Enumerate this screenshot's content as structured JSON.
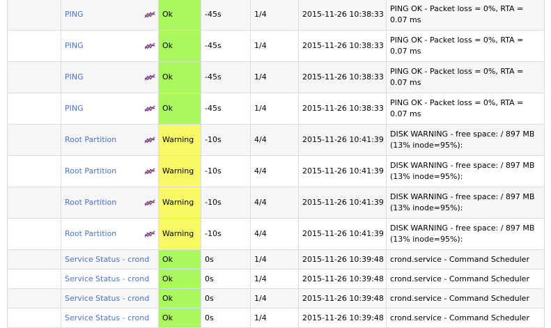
{
  "rows": [
    {
      "service": "PING",
      "graph_icon": "graph-icon",
      "status": "Ok",
      "last_check": "-45s",
      "attempt": "1/4",
      "checked_at": "2015-11-26 10:38:33",
      "info": "PING OK - Packet loss = 0%, RTA = 0.07 ms"
    },
    {
      "service": "PING",
      "graph_icon": "graph-icon",
      "status": "Ok",
      "last_check": "-45s",
      "attempt": "1/4",
      "checked_at": "2015-11-26 10:38:33",
      "info": "PING OK - Packet loss = 0%, RTA = 0.07 ms"
    },
    {
      "service": "PING",
      "graph_icon": "graph-icon",
      "status": "Ok",
      "last_check": "-45s",
      "attempt": "1/4",
      "checked_at": "2015-11-26 10:38:33",
      "info": "PING OK - Packet loss = 0%, RTA = 0.07 ms"
    },
    {
      "service": "PING",
      "graph_icon": "graph-icon",
      "status": "Ok",
      "last_check": "-45s",
      "attempt": "1/4",
      "checked_at": "2015-11-26 10:38:33",
      "info": "PING OK - Packet loss = 0%, RTA = 0.07 ms"
    },
    {
      "service": "Root Partition",
      "graph_icon": "graph-icon",
      "status": "Warning",
      "last_check": "-10s",
      "attempt": "4/4",
      "checked_at": "2015-11-26 10:41:39",
      "info": "DISK WARNING - free space: / 897 MB (13% inode=95%):"
    },
    {
      "service": "Root Partition",
      "graph_icon": "graph-icon",
      "status": "Warning",
      "last_check": "-10s",
      "attempt": "4/4",
      "checked_at": "2015-11-26 10:41:39",
      "info": "DISK WARNING - free space: / 897 MB (13% inode=95%):"
    },
    {
      "service": "Root Partition",
      "graph_icon": "graph-icon",
      "status": "Warning",
      "last_check": "-10s",
      "attempt": "4/4",
      "checked_at": "2015-11-26 10:41:39",
      "info": "DISK WARNING - free space: / 897 MB (13% inode=95%):"
    },
    {
      "service": "Root Partition",
      "graph_icon": "graph-icon",
      "status": "Warning",
      "last_check": "-10s",
      "attempt": "4/4",
      "checked_at": "2015-11-26 10:41:39",
      "info": "DISK WARNING - free space: / 897 MB (13% inode=95%):"
    },
    {
      "service": "Service Status - crond",
      "graph_icon": "",
      "status": "Ok",
      "last_check": "0s",
      "attempt": "1/4",
      "checked_at": "2015-11-26 10:39:48",
      "info": "crond.service - Command Scheduler"
    },
    {
      "service": "Service Status - crond",
      "graph_icon": "",
      "status": "Ok",
      "last_check": "0s",
      "attempt": "1/4",
      "checked_at": "2015-11-26 10:39:48",
      "info": "crond.service - Command Scheduler"
    },
    {
      "service": "Service Status - crond",
      "graph_icon": "",
      "status": "Ok",
      "last_check": "0s",
      "attempt": "1/4",
      "checked_at": "2015-11-26 10:39:48",
      "info": "crond.service - Command Scheduler"
    },
    {
      "service": "Service Status - crond",
      "graph_icon": "",
      "status": "Ok",
      "last_check": "0s",
      "attempt": "1/4",
      "checked_at": "2015-11-26 10:39:48",
      "info": "crond.service - Command Scheduler"
    }
  ],
  "colors": {
    "ok": "#aaf75f",
    "warning": "#f9f967",
    "link": "#4a73c9",
    "row_odd": "#f6f6f6",
    "row_even": "#ffffff",
    "border": "#dcdcdc"
  }
}
